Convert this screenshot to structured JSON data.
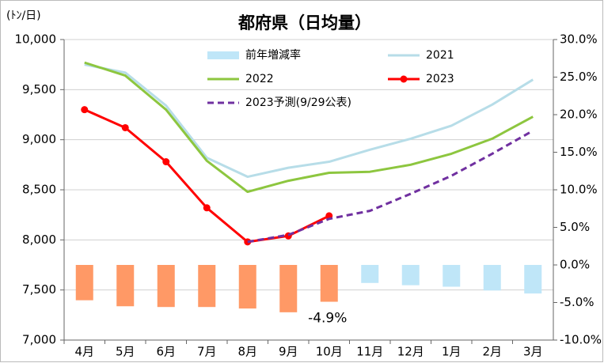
{
  "chart_data": {
    "type": "combo",
    "title": "都府県（日均量）",
    "y_label": "(ﾄﾝ/日)",
    "categories": [
      "4月",
      "5月",
      "6月",
      "7月",
      "8月",
      "9月",
      "10月",
      "11月",
      "12月",
      "1月",
      "2月",
      "3月"
    ],
    "ylim": [
      7000,
      10000
    ],
    "yticks": [
      {
        "value": 7000,
        "label": "7,000"
      },
      {
        "value": 7500,
        "label": "7,500"
      },
      {
        "value": 8000,
        "label": "8,000"
      },
      {
        "value": 8500,
        "label": "8,500"
      },
      {
        "value": 9000,
        "label": "9,000"
      },
      {
        "value": 9500,
        "label": "9,500"
      },
      {
        "value": 10000,
        "label": "10,000"
      }
    ],
    "y2lim": [
      -10,
      30
    ],
    "y2ticks": [
      {
        "value": -10,
        "label": "-10.0%"
      },
      {
        "value": -5,
        "label": "-5.0%"
      },
      {
        "value": 0,
        "label": "0.0%"
      },
      {
        "value": 5,
        "label": "5.0%"
      },
      {
        "value": 10,
        "label": "10.0%"
      },
      {
        "value": 15,
        "label": "15.0%"
      },
      {
        "value": 20,
        "label": "20.0%"
      },
      {
        "value": 25,
        "label": "25.0%"
      },
      {
        "value": 30,
        "label": "30.0%"
      }
    ],
    "grid": true,
    "series": [
      {
        "name": "前年増減率",
        "type": "bar",
        "axis": "y2",
        "color": "#bfe6f8",
        "colors": [
          "#ff9966",
          "#ff9966",
          "#ff9966",
          "#ff9966",
          "#ff9966",
          "#ff9966",
          "#ff9966",
          "#bfe6f8",
          "#bfe6f8",
          "#bfe6f8",
          "#bfe6f8",
          "#bfe6f8"
        ],
        "values": [
          -4.7,
          -5.5,
          -5.6,
          -5.6,
          -5.8,
          -6.3,
          -4.9,
          -2.4,
          -2.7,
          -2.9,
          -3.4,
          -3.8
        ],
        "value_labels": [
          null,
          null,
          null,
          null,
          null,
          null,
          "-4.9%",
          null,
          null,
          null,
          null,
          null
        ]
      },
      {
        "name": "2021",
        "type": "line",
        "color": "#b7dde8",
        "values": [
          9750,
          9670,
          9340,
          8820,
          8630,
          8720,
          8780,
          8900,
          9010,
          9140,
          9350,
          9600
        ]
      },
      {
        "name": "2022",
        "type": "line",
        "color": "#8dc63f",
        "values": [
          9770,
          9640,
          9300,
          8790,
          8480,
          8590,
          8670,
          8680,
          8750,
          8860,
          9010,
          9230
        ]
      },
      {
        "name": "2023",
        "type": "line",
        "color": "#ff0000",
        "marker": "circle",
        "values": [
          9300,
          9120,
          8780,
          8320,
          7980,
          8040,
          8240,
          null,
          null,
          null,
          null,
          null
        ]
      },
      {
        "name": "2023予測(9/29公表)",
        "type": "line",
        "color": "#7030a0",
        "dashed": true,
        "values": [
          null,
          null,
          null,
          null,
          7980,
          8050,
          8210,
          8290,
          8460,
          8640,
          8860,
          9090
        ]
      }
    ]
  }
}
